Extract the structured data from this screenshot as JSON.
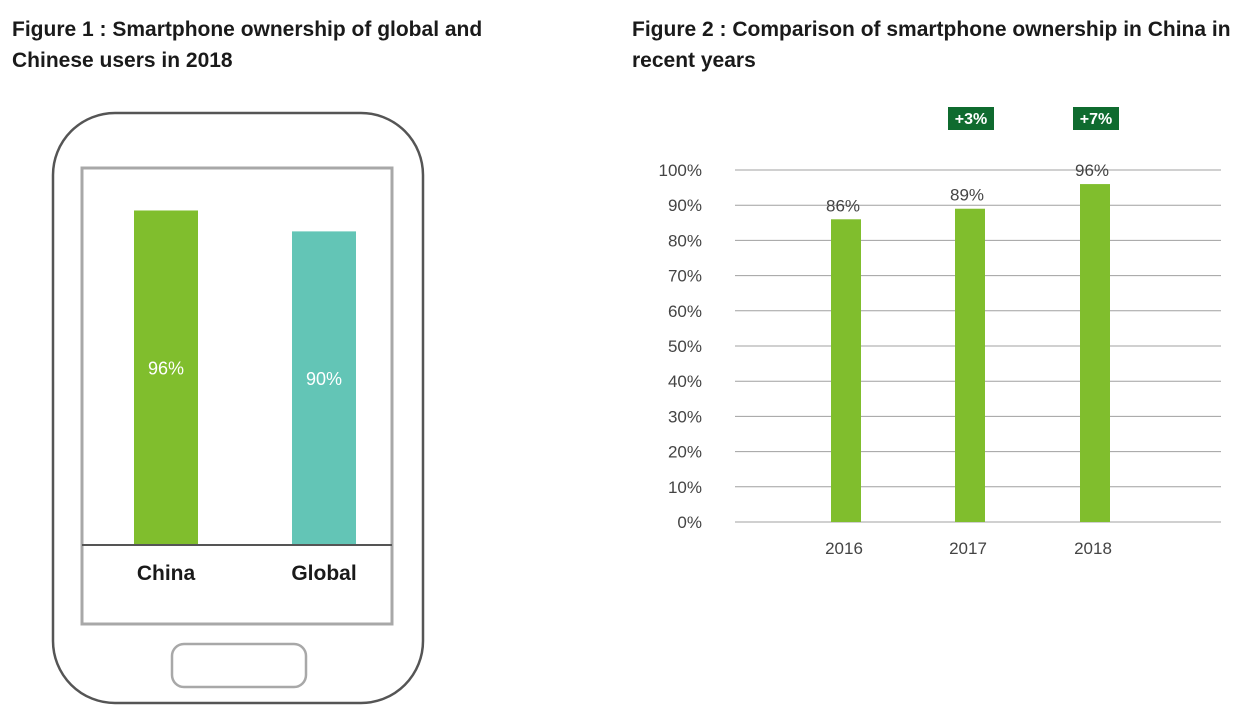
{
  "figure1": {
    "title": "Figure 1 : Smartphone ownership of global and Chinese users in 2018"
  },
  "figure2": {
    "title": "Figure 2 : Comparison of smartphone ownership in China in recent years"
  },
  "colors": {
    "green": "#80BE2D",
    "teal": "#63C5B6",
    "dark_green": "#0F6B2F",
    "gridline": "#a0a0a0",
    "phone_outline": "#555555",
    "screen_border": "#a8a8a8"
  },
  "chart_data": [
    {
      "type": "bar",
      "title": "Figure 1 : Smartphone ownership of global and Chinese users in 2018",
      "categories": [
        "China",
        "Global"
      ],
      "values": [
        96,
        90
      ],
      "value_labels": [
        "96%",
        "90%"
      ],
      "colors": [
        "#80BE2D",
        "#63C5B6"
      ],
      "style": "bars drawn inside a smartphone outline",
      "ylim": [
        0,
        100
      ]
    },
    {
      "type": "bar",
      "title": "Figure 2 : Comparison of smartphone ownership in China in recent years",
      "categories": [
        "2016",
        "2017",
        "2018"
      ],
      "values": [
        86,
        89,
        96
      ],
      "value_labels": [
        "86%",
        "89%",
        "96%"
      ],
      "changes": [
        "",
        "+3%",
        "+7%"
      ],
      "yticks": [
        "0%",
        "10%",
        "20%",
        "30%",
        "40%",
        "50%",
        "60%",
        "70%",
        "80%",
        "90%",
        "100%"
      ],
      "ylim": [
        0,
        100
      ],
      "grid": true,
      "legend": "none"
    }
  ]
}
